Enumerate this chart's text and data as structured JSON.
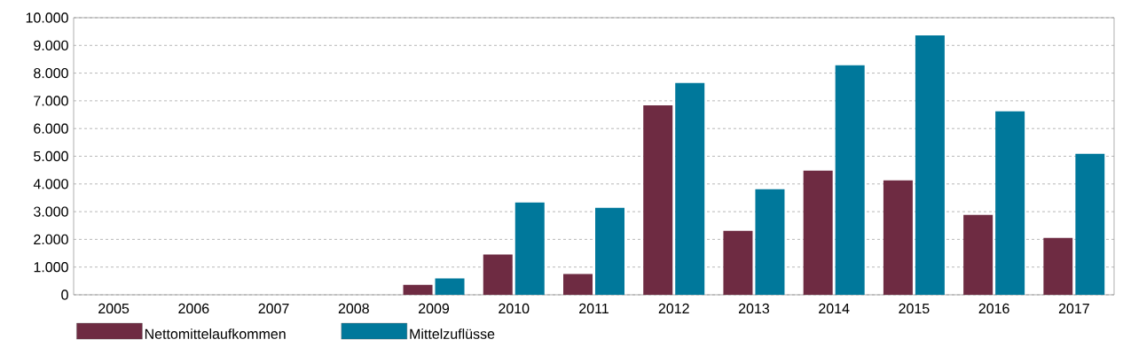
{
  "chart_data": {
    "type": "bar",
    "categories": [
      "2005",
      "2006",
      "2007",
      "2008",
      "2009",
      "2010",
      "2011",
      "2012",
      "2013",
      "2014",
      "2015",
      "2016",
      "2017"
    ],
    "series": [
      {
        "name": "Nettomittelaufkommen",
        "color": "#6e2b42",
        "values": [
          0,
          0,
          0,
          0,
          360,
          1450,
          750,
          6840,
          2310,
          4480,
          4130,
          2880,
          2050
        ]
      },
      {
        "name": "Mittelzuflüsse",
        "color": "#00789b",
        "values": [
          0,
          0,
          0,
          0,
          590,
          3330,
          3140,
          7640,
          3810,
          8280,
          9360,
          6620,
          5090
        ]
      }
    ],
    "ylim": [
      0,
      10000
    ],
    "yticks": [
      {
        "value": 0,
        "label": "0"
      },
      {
        "value": 1000,
        "label": "1.000"
      },
      {
        "value": 2000,
        "label": "2.000"
      },
      {
        "value": 3000,
        "label": "3.000"
      },
      {
        "value": 4000,
        "label": "4.000"
      },
      {
        "value": 5000,
        "label": "5.000"
      },
      {
        "value": 6000,
        "label": "6.000"
      },
      {
        "value": 7000,
        "label": "7.000"
      },
      {
        "value": 8000,
        "label": "8.000"
      },
      {
        "value": 9000,
        "label": "9.000"
      },
      {
        "value": 10000,
        "label": "10.000"
      }
    ],
    "grid": "y",
    "legend": "bottom left"
  }
}
